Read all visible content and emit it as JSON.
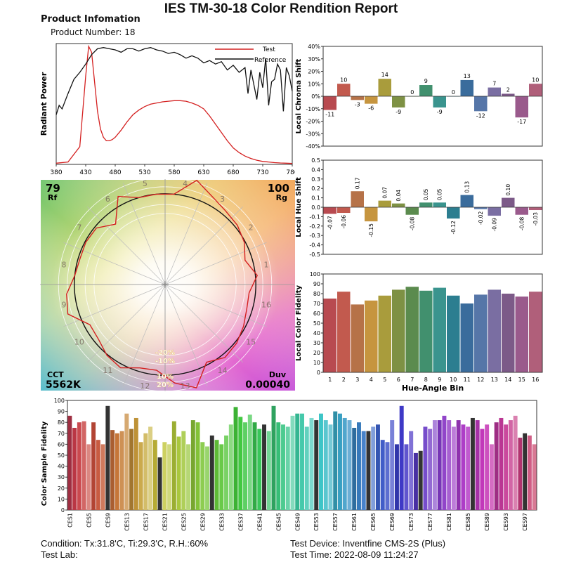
{
  "header": {
    "title": "IES TM-30-18 Color Rendition Report",
    "product_heading": "Product Infomation",
    "product_number": "Product Number: 18"
  },
  "footer": {
    "condition": "Condition: Tx:31.8'C, Ti:29.3'C, R.H.:60%",
    "test_lab": "Test Lab:",
    "test_device": "Test Device: Inventfine CMS-2S (Plus)",
    "test_time": "Test Time: 2022-08-09 11:24:27"
  },
  "chart_data": [
    {
      "id": "spd",
      "type": "line",
      "ylabel": "Radiant Power",
      "xlim": [
        380,
        780
      ],
      "x_ticks": [
        "380",
        "430",
        "480",
        "530",
        "580",
        "630",
        "680",
        "730",
        "780"
      ],
      "legend": [
        "Test",
        "Reference"
      ],
      "series": [
        {
          "name": "Test",
          "color": "#d42020",
          "x": [
            380,
            400,
            420,
            430,
            435,
            440,
            445,
            450,
            455,
            460,
            465,
            470,
            475,
            480,
            490,
            500,
            510,
            520,
            530,
            540,
            550,
            560,
            570,
            580,
            590,
            600,
            610,
            620,
            630,
            640,
            650,
            660,
            670,
            680,
            690,
            700,
            710,
            720,
            730,
            740,
            750,
            760,
            770,
            780
          ],
          "y": [
            0.01,
            0.02,
            0.15,
            0.75,
            1.0,
            0.95,
            0.7,
            0.45,
            0.3,
            0.23,
            0.2,
            0.2,
            0.21,
            0.23,
            0.29,
            0.36,
            0.42,
            0.46,
            0.49,
            0.51,
            0.52,
            0.53,
            0.535,
            0.54,
            0.54,
            0.535,
            0.52,
            0.5,
            0.47,
            0.41,
            0.34,
            0.27,
            0.2,
            0.14,
            0.1,
            0.07,
            0.05,
            0.035,
            0.025,
            0.02,
            0.015,
            0.012,
            0.01,
            0.008
          ]
        },
        {
          "name": "Reference",
          "color": "#111111",
          "x": [
            380,
            385,
            390,
            400,
            410,
            420,
            430,
            440,
            450,
            460,
            470,
            480,
            490,
            500,
            510,
            520,
            530,
            540,
            550,
            560,
            570,
            580,
            590,
            600,
            610,
            620,
            630,
            640,
            650,
            660,
            670,
            680,
            690,
            700,
            705,
            710,
            720,
            725,
            730,
            735,
            740,
            745,
            750,
            755,
            760,
            765,
            770,
            775,
            780
          ],
          "y": [
            0.42,
            0.5,
            0.47,
            0.6,
            0.72,
            0.78,
            0.85,
            0.93,
            0.98,
            0.99,
            0.98,
            0.97,
            0.95,
            0.98,
            0.98,
            0.96,
            0.98,
            0.99,
            0.97,
            0.96,
            0.94,
            0.95,
            0.93,
            0.9,
            0.92,
            0.9,
            0.86,
            0.88,
            0.85,
            0.87,
            0.8,
            0.84,
            0.78,
            0.82,
            0.6,
            0.8,
            0.55,
            0.78,
            0.65,
            0.9,
            0.5,
            0.7,
            0.72,
            0.85,
            0.8,
            0.45,
            0.82,
            0.75,
            0.62
          ]
        }
      ]
    },
    {
      "id": "chroma",
      "type": "bar",
      "ylabel": "Local Chroma Shift",
      "ylim": [
        -40,
        40
      ],
      "y_ticks": [
        "40%",
        "30%",
        "20%",
        "10%",
        "0%",
        "-10%",
        "-20%",
        "-30%",
        "-40%"
      ],
      "categories": [
        "1",
        "2",
        "3",
        "4",
        "5",
        "6",
        "7",
        "8",
        "9",
        "10",
        "11",
        "12",
        "13",
        "14",
        "15",
        "16"
      ],
      "values": [
        -11,
        10,
        -3,
        -6,
        14,
        -9,
        0,
        9,
        -9,
        0,
        13,
        -12,
        7,
        2,
        -17,
        10
      ],
      "labels": [
        "-11",
        "10",
        "-3",
        "-6",
        "14",
        "-9",
        "0",
        "9",
        "-9",
        "0",
        "13",
        "-12",
        "7",
        "2",
        "-17",
        "10"
      ]
    },
    {
      "id": "hue",
      "type": "bar",
      "ylabel": "Local Hue Shift",
      "ylim": [
        -0.5,
        0.5
      ],
      "y_ticks": [
        "0.5",
        "0.4",
        "0.3",
        "0.2",
        "0.1",
        "0.0",
        "-0.1",
        "-0.2",
        "-0.3",
        "-0.4",
        "-0.5"
      ],
      "categories": [
        "1",
        "2",
        "3",
        "4",
        "5",
        "6",
        "7",
        "8",
        "9",
        "10",
        "11",
        "12",
        "13",
        "14",
        "15",
        "16"
      ],
      "values": [
        -0.07,
        -0.06,
        0.17,
        -0.15,
        0.07,
        0.04,
        -0.08,
        0.05,
        0.05,
        -0.12,
        0.13,
        -0.02,
        -0.09,
        0.1,
        -0.08,
        -0.03
      ],
      "labels": [
        "-0.07",
        "-0.06",
        "0.17",
        "-0.15",
        "0.07",
        "0.04",
        "-0.08",
        "0.05",
        "0.05",
        "-0.12",
        "0.13",
        "-0.02",
        "-0.09",
        "0.10",
        "-0.08",
        "-0.03"
      ]
    },
    {
      "id": "fidelity",
      "type": "bar",
      "ylabel": "Local Color Fidelity",
      "xlabel": "Hue-Angle Bin",
      "ylim": [
        0,
        100
      ],
      "y_ticks": [
        "100",
        "90",
        "80",
        "70",
        "60",
        "50",
        "40",
        "30",
        "20",
        "10",
        "0"
      ],
      "categories": [
        "1",
        "2",
        "3",
        "4",
        "5",
        "6",
        "7",
        "8",
        "9",
        "10",
        "11",
        "12",
        "13",
        "14",
        "15",
        "16"
      ],
      "values": [
        75,
        82,
        69,
        73,
        78,
        84,
        87,
        83,
        86,
        78,
        70,
        79,
        84,
        80,
        77,
        82
      ]
    },
    {
      "id": "vector",
      "type": "scatter",
      "rf_value": "79",
      "rf_label": "Rf",
      "rg_value": "100",
      "rg_label": "Rg",
      "cct_label": "CCT",
      "cct_value": "5562K",
      "duv_label": "Duv",
      "duv_value": "0.00040",
      "angle_labels": [
        "1",
        "2",
        "3",
        "4",
        "5",
        "6",
        "7",
        "8",
        "9",
        "10",
        "11",
        "12",
        "13",
        "14",
        "15",
        "16"
      ],
      "ring_labels": [
        "-20%",
        "-10%",
        "10%",
        "20%"
      ],
      "test_radii": [
        1.02,
        0.92,
        0.99,
        1.03,
        1.05,
        1.1,
        1.2,
        1.0,
        1.0,
        1.0,
        1.1,
        0.86,
        0.98,
        0.99,
        0.98,
        1.0,
        1.09,
        1.12,
        0.94,
        0.95,
        1.01,
        1.04,
        0.96,
        0.95,
        1.09,
        1.19,
        0.97,
        1.04,
        1.02,
        0.98,
        0.94,
        0.93
      ]
    },
    {
      "id": "samples",
      "type": "bar",
      "ylabel": "Color Sample Fidelity",
      "ylim": [
        0,
        100
      ],
      "y_ticks": [
        "100",
        "90",
        "80",
        "70",
        "60",
        "50",
        "40",
        "30",
        "20",
        "10",
        "0"
      ],
      "tick_labels": [
        "CES1",
        "CES5",
        "CES9",
        "CES13",
        "CES17",
        "CES21",
        "CES25",
        "CES29",
        "CES33",
        "CES37",
        "CES41",
        "CES45",
        "CES49",
        "CES53",
        "CES57",
        "CES61",
        "CES65",
        "CES69",
        "CES73",
        "CES77",
        "CES81",
        "CES85",
        "CES89",
        "CES93",
        "CES97"
      ],
      "values": [
        86,
        75,
        80,
        81,
        60,
        80,
        64,
        60,
        95,
        73,
        70,
        72,
        88,
        74,
        84,
        62,
        70,
        76,
        64,
        48,
        62,
        60,
        81,
        67,
        72,
        60,
        82,
        80,
        62,
        58,
        68,
        64,
        60,
        68,
        78,
        94,
        85,
        80,
        87,
        80,
        74,
        78,
        72,
        95,
        80,
        78,
        76,
        86,
        88,
        88,
        76,
        84,
        82,
        88,
        82,
        78,
        90,
        88,
        84,
        82,
        75,
        80,
        72,
        72,
        76,
        78,
        64,
        62,
        82,
        60,
        95,
        60,
        72,
        52,
        54,
        76,
        74,
        82,
        82,
        86,
        82,
        76,
        82,
        78,
        76,
        84,
        82,
        74,
        78,
        60,
        80,
        84,
        78,
        82,
        86,
        66,
        70,
        68,
        60
      ]
    }
  ]
}
